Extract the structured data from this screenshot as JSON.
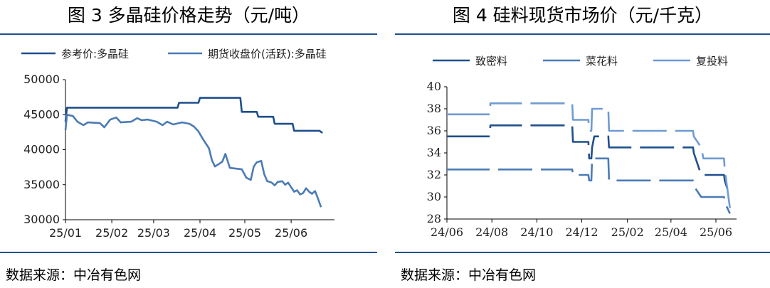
{
  "panels": [
    {
      "title": "图 3  多晶硅价格走势（元/吨）",
      "source": "数据来源：中冶有色网"
    },
    {
      "title": "图 4  硅料现货市场价（元/千克）",
      "source": "数据来源：中冶有色网"
    }
  ],
  "chart_data": [
    {
      "type": "line",
      "title": "图 3  多晶硅价格走势（元/吨）",
      "xlabel": "",
      "ylabel": "",
      "x_ticks": [
        "25/01",
        "25/02",
        "25/03",
        "25/04",
        "25/05",
        "25/06"
      ],
      "y_ticks": [
        30000,
        35000,
        40000,
        45000,
        50000
      ],
      "ylim": [
        30000,
        50000
      ],
      "grid": false,
      "legend_position": "top",
      "colors": [
        "#1f4f8c",
        "#4b7bb5"
      ],
      "series": [
        {
          "name": "参考价:多晶硅",
          "points": [
            [
              "2025-01-01",
              44000
            ],
            [
              "2025-01-02",
              46000
            ],
            [
              "2025-03-17",
              46000
            ],
            [
              "2025-03-18",
              46700
            ],
            [
              "2025-03-31",
              46700
            ],
            [
              "2025-04-01",
              47400
            ],
            [
              "2025-04-28",
              47400
            ],
            [
              "2025-04-29",
              45400
            ],
            [
              "2025-05-09",
              45400
            ],
            [
              "2025-05-10",
              44700
            ],
            [
              "2025-05-20",
              44700
            ],
            [
              "2025-05-21",
              43700
            ],
            [
              "2025-06-02",
              43700
            ],
            [
              "2025-06-03",
              42700
            ],
            [
              "2025-06-20",
              42700
            ],
            [
              "2025-06-22",
              42400
            ]
          ]
        },
        {
          "name": "期货收盘价(活跃):多晶硅",
          "points": [
            [
              "2025-01-01",
              42800
            ],
            [
              "2025-01-02",
              45000
            ],
            [
              "2025-01-06",
              44800
            ],
            [
              "2025-01-09",
              44000
            ],
            [
              "2025-01-13",
              43500
            ],
            [
              "2025-01-16",
              43900
            ],
            [
              "2025-01-24",
              43800
            ],
            [
              "2025-01-27",
              43200
            ],
            [
              "2025-01-31",
              44300
            ],
            [
              "2025-02-04",
              44600
            ],
            [
              "2025-02-07",
              43900
            ],
            [
              "2025-02-14",
              44000
            ],
            [
              "2025-02-18",
              44500
            ],
            [
              "2025-02-21",
              44200
            ],
            [
              "2025-02-25",
              44300
            ],
            [
              "2025-03-03",
              44000
            ],
            [
              "2025-03-07",
              43500
            ],
            [
              "2025-03-10",
              44000
            ],
            [
              "2025-03-14",
              43600
            ],
            [
              "2025-03-20",
              43900
            ],
            [
              "2025-03-25",
              43700
            ],
            [
              "2025-03-28",
              43300
            ],
            [
              "2025-03-31",
              42600
            ],
            [
              "2025-04-03",
              41500
            ],
            [
              "2025-04-07",
              40200
            ],
            [
              "2025-04-09",
              38500
            ],
            [
              "2025-04-11",
              37600
            ],
            [
              "2025-04-14",
              38000
            ],
            [
              "2025-04-16",
              38300
            ],
            [
              "2025-04-18",
              39400
            ],
            [
              "2025-04-21",
              37400
            ],
            [
              "2025-04-25",
              37300
            ],
            [
              "2025-04-29",
              37200
            ],
            [
              "2025-05-02",
              36000
            ],
            [
              "2025-05-05",
              35700
            ],
            [
              "2025-05-07",
              37600
            ],
            [
              "2025-05-09",
              38200
            ],
            [
              "2025-05-12",
              38400
            ],
            [
              "2025-05-14",
              36500
            ],
            [
              "2025-05-16",
              35500
            ],
            [
              "2025-05-19",
              35300
            ],
            [
              "2025-05-21",
              34900
            ],
            [
              "2025-05-23",
              35400
            ],
            [
              "2025-05-26",
              35500
            ],
            [
              "2025-05-28",
              35000
            ],
            [
              "2025-05-30",
              35300
            ],
            [
              "2025-06-03",
              34000
            ],
            [
              "2025-06-05",
              34200
            ],
            [
              "2025-06-07",
              33600
            ],
            [
              "2025-06-09",
              33800
            ],
            [
              "2025-06-11",
              34500
            ],
            [
              "2025-06-13",
              34000
            ],
            [
              "2025-06-15",
              33700
            ],
            [
              "2025-06-17",
              34100
            ],
            [
              "2025-06-19",
              33000
            ],
            [
              "2025-06-21",
              31800
            ]
          ]
        }
      ]
    },
    {
      "type": "line",
      "title": "图 4  硅料现货市场价（元/千克）",
      "xlabel": "",
      "ylabel": "",
      "x_ticks": [
        "24/06",
        "24/08",
        "24/10",
        "24/12",
        "25/02",
        "25/04",
        "25/06"
      ],
      "y_ticks": [
        28,
        30,
        32,
        34,
        36,
        38,
        40
      ],
      "ylim": [
        28,
        40
      ],
      "grid": false,
      "legend_position": "top",
      "colors": [
        "#1f4f8c",
        "#4b7bb5",
        "#6f9bd1"
      ],
      "series": [
        {
          "name": "致密料",
          "points": [
            [
              "2024-06-01",
              35.5
            ],
            [
              "2024-07-29",
              35.5
            ],
            [
              "2024-07-30",
              36.5
            ],
            [
              "2024-11-18",
              36.5
            ],
            [
              "2024-11-19",
              35.0
            ],
            [
              "2024-12-10",
              35.0
            ],
            [
              "2024-12-11",
              33.5
            ],
            [
              "2024-12-14",
              33.5
            ],
            [
              "2024-12-15",
              34.5
            ],
            [
              "2024-12-18",
              35.5
            ],
            [
              "2025-01-06",
              35.5
            ],
            [
              "2025-01-07",
              34.5
            ],
            [
              "2025-05-01",
              34.5
            ],
            [
              "2025-05-02",
              34.0
            ],
            [
              "2025-05-12",
              32.0
            ],
            [
              "2025-06-12",
              32.0
            ],
            [
              "2025-06-13",
              31.5
            ],
            [
              "2025-06-20",
              30.0
            ]
          ]
        },
        {
          "name": "菜花料",
          "points": [
            [
              "2024-06-01",
              32.5
            ],
            [
              "2024-11-18",
              32.5
            ],
            [
              "2024-11-19",
              32.0
            ],
            [
              "2024-12-10",
              32.0
            ],
            [
              "2024-12-11",
              31.5
            ],
            [
              "2024-12-14",
              31.5
            ],
            [
              "2024-12-15",
              33.5
            ],
            [
              "2025-01-06",
              33.5
            ],
            [
              "2025-01-07",
              31.5
            ],
            [
              "2025-05-01",
              31.5
            ],
            [
              "2025-05-02",
              31.0
            ],
            [
              "2025-05-12",
              30.0
            ],
            [
              "2025-06-12",
              30.0
            ],
            [
              "2025-06-13",
              29.5
            ],
            [
              "2025-06-20",
              28.5
            ]
          ]
        },
        {
          "name": "复投料",
          "points": [
            [
              "2024-06-01",
              37.5
            ],
            [
              "2024-07-29",
              37.5
            ],
            [
              "2024-07-30",
              38.5
            ],
            [
              "2024-11-18",
              38.5
            ],
            [
              "2024-11-19",
              37.0
            ],
            [
              "2024-12-10",
              37.0
            ],
            [
              "2024-12-11",
              36.0
            ],
            [
              "2024-12-14",
              36.0
            ],
            [
              "2024-12-15",
              38.0
            ],
            [
              "2025-01-06",
              38.0
            ],
            [
              "2025-01-07",
              36.0
            ],
            [
              "2025-05-01",
              36.0
            ],
            [
              "2025-05-02",
              35.5
            ],
            [
              "2025-05-12",
              34.5
            ],
            [
              "2025-05-15",
              33.5
            ],
            [
              "2025-06-12",
              33.5
            ],
            [
              "2025-06-13",
              32.5
            ],
            [
              "2025-06-20",
              29.0
            ]
          ]
        }
      ]
    }
  ]
}
